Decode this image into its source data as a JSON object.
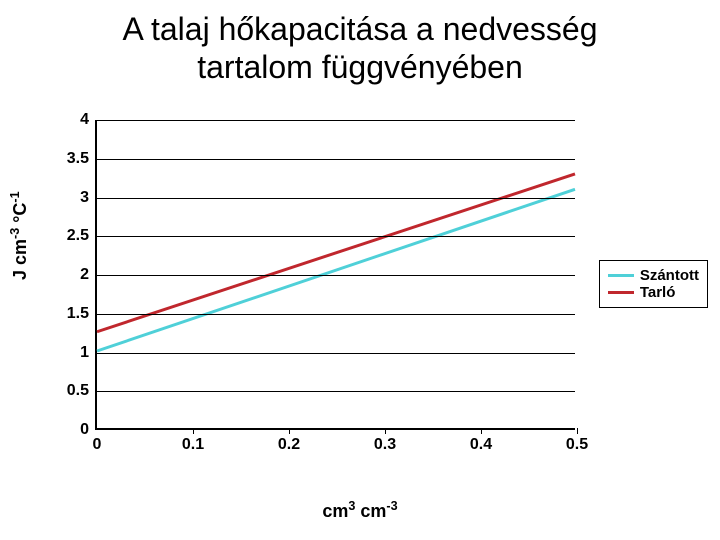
{
  "title_line1": "A talaj hőkapacitása a nedvesség",
  "title_line2": "tartalom függvényében",
  "chart": {
    "type": "line",
    "ylabel_html": "J cm<sup>-3</sup> °C<sup>-1</sup>",
    "xlabel_html": "cm<sup>3</sup> cm<sup>-3</sup>",
    "xlim": [
      0,
      0.5
    ],
    "ylim": [
      0,
      4
    ],
    "ytick_step": 0.5,
    "xtick_step": 0.1,
    "yticks": [
      "0",
      "0.5",
      "1",
      "1.5",
      "2",
      "2.5",
      "3",
      "3.5",
      "4"
    ],
    "xticks": [
      "0",
      "0.1",
      "0.2",
      "0.3",
      "0.4",
      "0.5"
    ],
    "background_color": "#ffffff",
    "grid_color": "#000000",
    "axis_color": "#000000",
    "line_width": 3,
    "tick_fontsize": 16,
    "tick_fontweight": "bold",
    "label_fontsize": 18,
    "title_fontsize": 32,
    "series": [
      {
        "name": "Szántott",
        "color": "#4fd0d8",
        "x": [
          0,
          0.5
        ],
        "y": [
          1.0,
          3.1
        ]
      },
      {
        "name": "Tarló",
        "color": "#c0272d",
        "x": [
          0,
          0.5
        ],
        "y": [
          1.25,
          3.3
        ]
      }
    ],
    "legend": {
      "position": "right",
      "border_color": "#000000",
      "items": [
        {
          "label": "Szántott",
          "color": "#4fd0d8"
        },
        {
          "label": "Tarló",
          "color": "#c0272d"
        }
      ]
    }
  }
}
